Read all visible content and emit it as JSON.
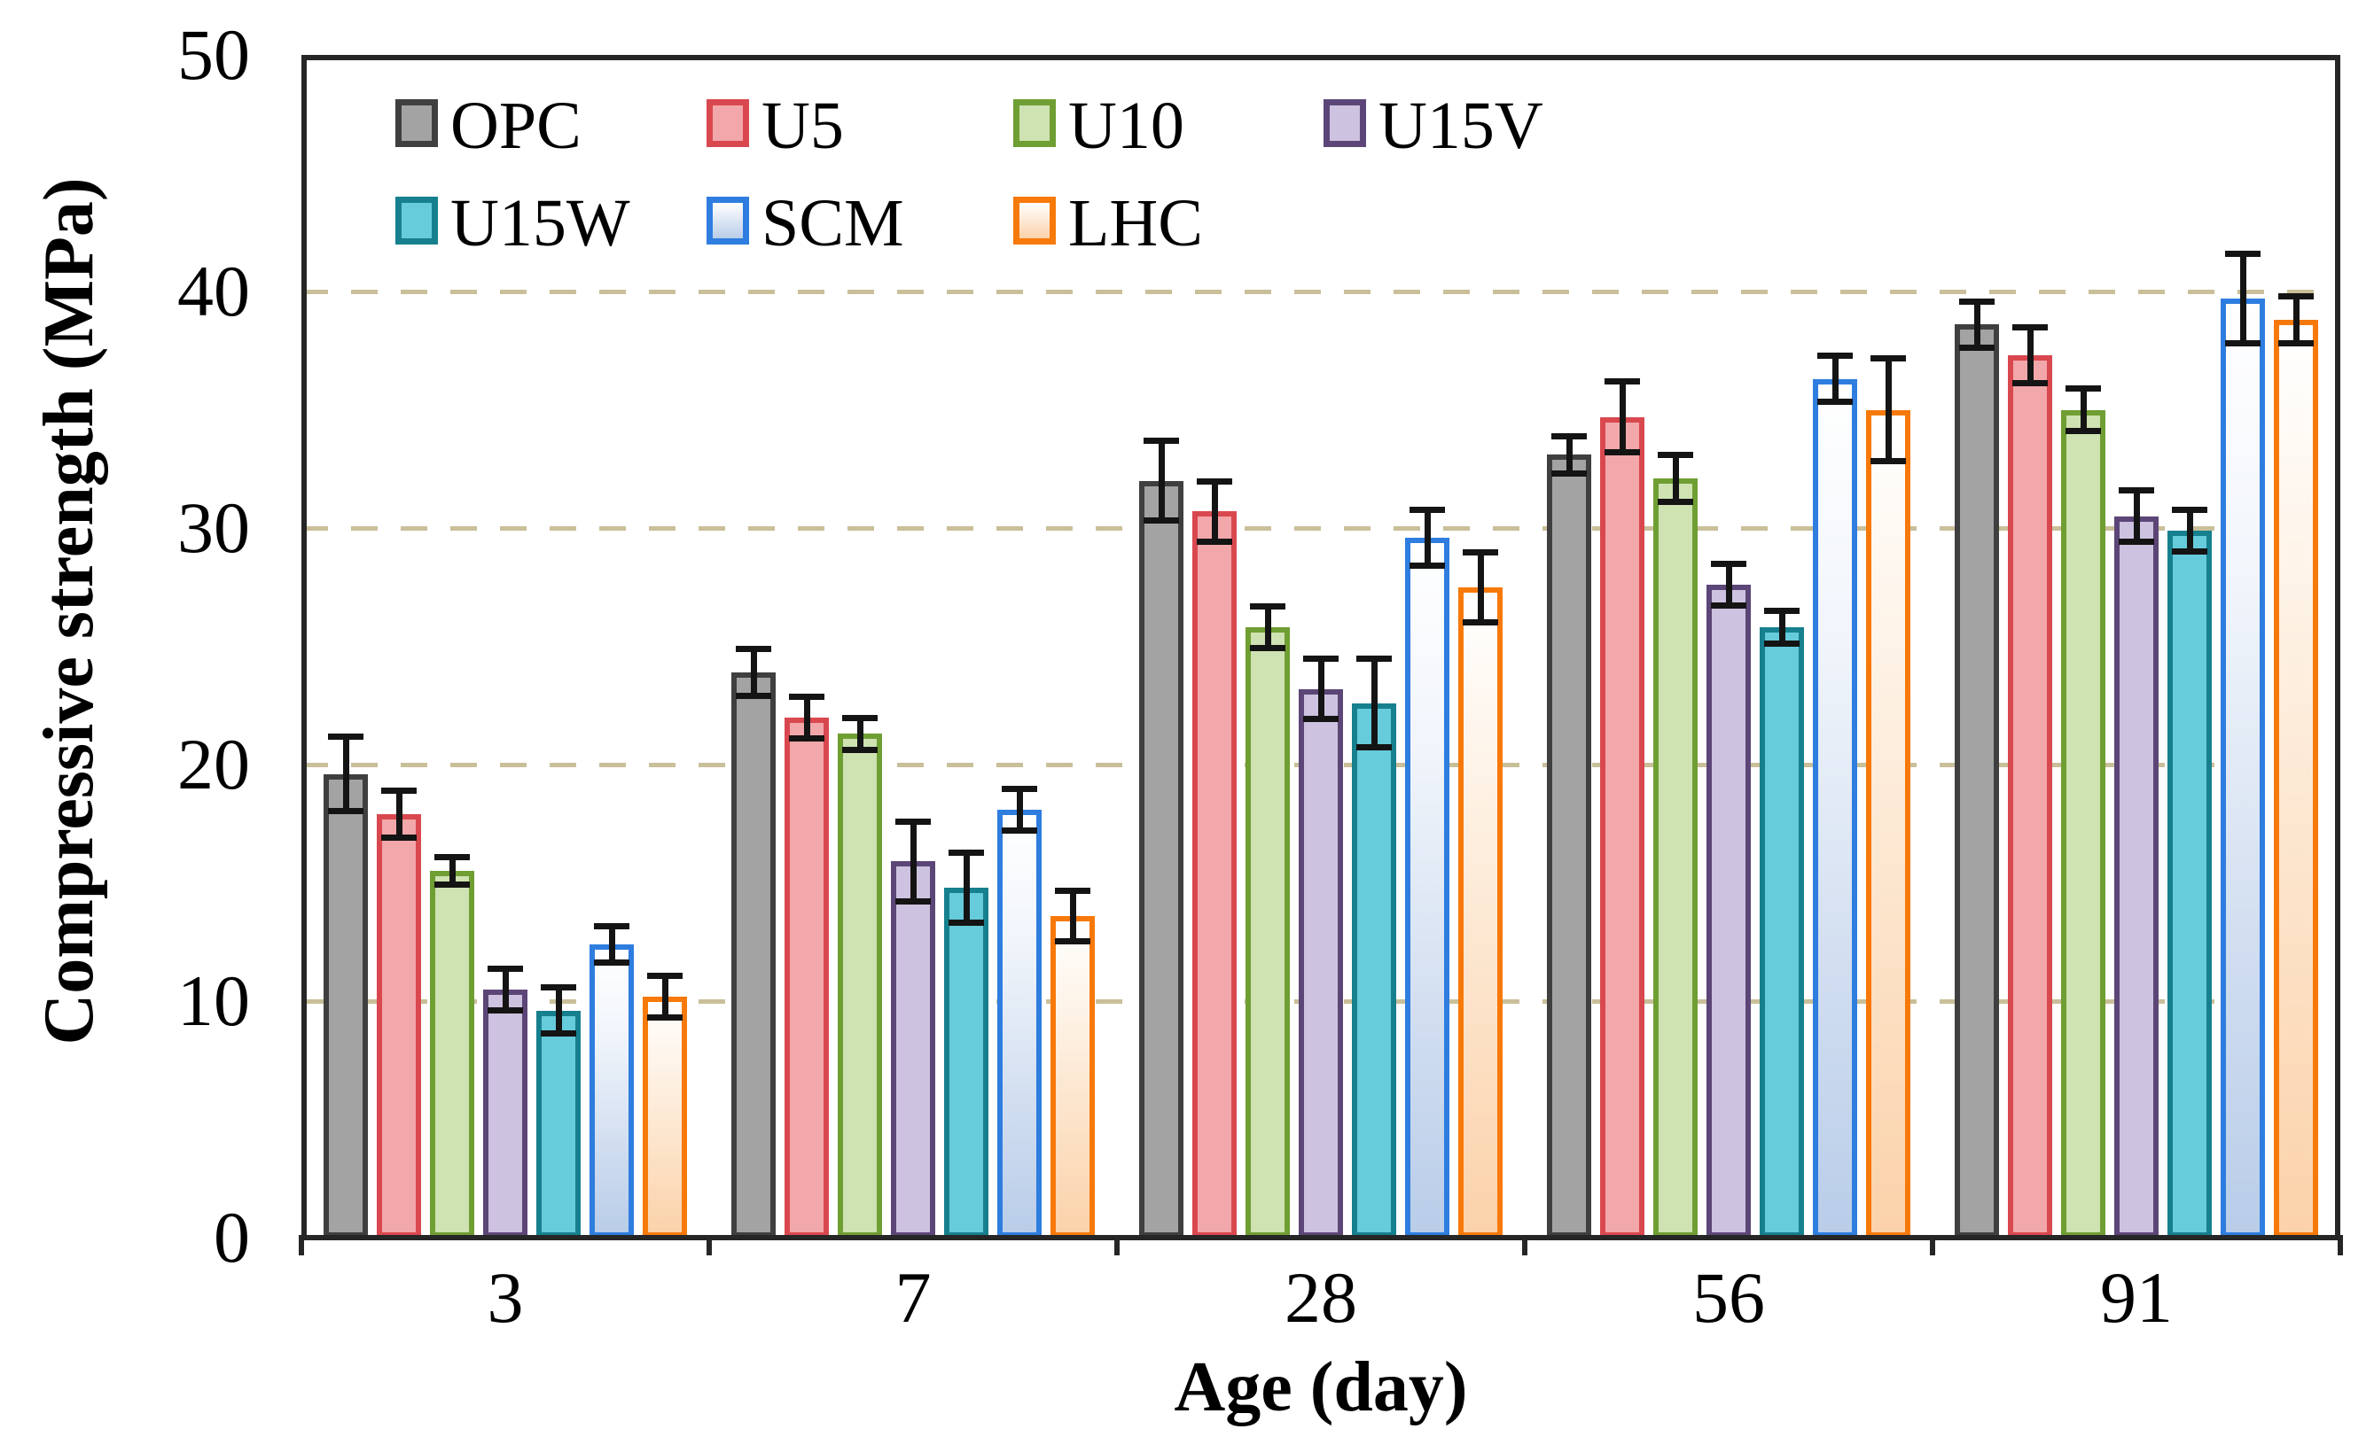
{
  "chart_data": {
    "type": "bar",
    "title": "",
    "xlabel": "Age (day)",
    "ylabel": "Compressive strength (MPa)",
    "categories": [
      "3",
      "7",
      "28",
      "56",
      "91"
    ],
    "y_ticks": [
      "0",
      "10",
      "20",
      "30",
      "40",
      "50"
    ],
    "ylim": [
      0,
      50
    ],
    "ytick_step": 10,
    "grid": "horizontal dashed lines at 10, 20, 30, 40",
    "error_bars": true,
    "legend_position": "top-left inside plot, 2 rows (OPC U5 U10 U15V / U15W SCM LHC)",
    "series": [
      {
        "name": "OPC",
        "values": [
          19.6,
          23.9,
          32.0,
          33.1,
          38.6
        ],
        "errors": [
          1.6,
          1.0,
          1.7,
          0.8,
          1.0
        ],
        "border": "#3f3f3f",
        "fill": "#a3a3a3"
      },
      {
        "name": "U5",
        "values": [
          17.9,
          22.0,
          30.7,
          34.7,
          37.3
        ],
        "errors": [
          1.0,
          0.9,
          1.3,
          1.5,
          1.2
        ],
        "border": "#d9484f",
        "fill": "#f2a7aa"
      },
      {
        "name": "U10",
        "values": [
          15.5,
          21.3,
          25.8,
          32.1,
          35.0
        ],
        "errors": [
          0.6,
          0.7,
          0.9,
          1.0,
          0.9
        ],
        "border": "#6f9e33",
        "fill": "#cfe2b2"
      },
      {
        "name": "U15V",
        "values": [
          10.5,
          15.9,
          23.2,
          27.6,
          30.5
        ],
        "errors": [
          0.9,
          1.7,
          1.3,
          0.9,
          1.1
        ],
        "border": "#5c4677",
        "fill": "#cdc2df"
      },
      {
        "name": "U15W",
        "values": [
          9.6,
          14.8,
          22.6,
          25.8,
          29.9
        ],
        "errors": [
          1.0,
          1.5,
          1.9,
          0.7,
          0.9
        ],
        "border": "#16808e",
        "fill": "#66cbdb"
      },
      {
        "name": "SCM",
        "values": [
          12.4,
          18.1,
          29.6,
          36.3,
          39.7
        ],
        "errors": [
          0.8,
          0.9,
          1.2,
          1.0,
          1.9
        ],
        "border": "#2e7ddf",
        "fill": "gradient-blue"
      },
      {
        "name": "LHC",
        "values": [
          10.2,
          13.6,
          27.5,
          35.0,
          38.8
        ],
        "errors": [
          0.9,
          1.1,
          1.5,
          2.2,
          1.0
        ],
        "border": "#f7790a",
        "fill": "gradient-orange"
      }
    ]
  },
  "colors": {
    "gridline": "#c9bf99",
    "axis": "#262626",
    "error_bar": "#141414",
    "background": "#ffffff",
    "gradient_blue_bottom": "#b9cde9",
    "gradient_orange_bottom": "#fbd2aa"
  }
}
